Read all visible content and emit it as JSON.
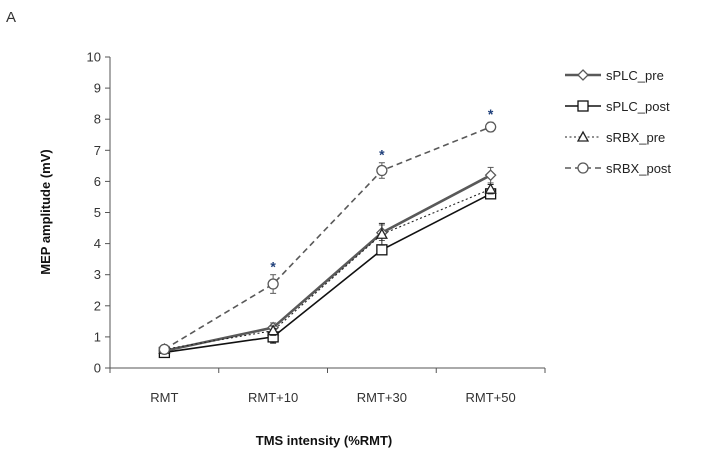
{
  "panel_label": "A",
  "chart_data": {
    "type": "line",
    "categories": [
      "RMT",
      "RMT+10",
      "RMT+30",
      "RMT+50"
    ],
    "xlabel": "TMS intensity (%RMT)",
    "ylabel": "MEP amplitude (mV)",
    "ylim": [
      0,
      10
    ],
    "yticks": [
      "0",
      "1",
      "2",
      "3",
      "4",
      "5",
      "6",
      "7",
      "8",
      "9",
      "10"
    ],
    "grid": false,
    "legend_position": "right",
    "series": [
      {
        "name": "sPLC_pre",
        "values": [
          0.55,
          1.3,
          4.35,
          6.2
        ],
        "errors": [
          0.1,
          0.15,
          0.25,
          0.25
        ],
        "marker": "diamond",
        "line_style": "solid",
        "line_width": "thick",
        "color": "#595959"
      },
      {
        "name": "sPLC_post",
        "values": [
          0.5,
          1.0,
          3.8,
          5.6
        ],
        "errors": [
          0.1,
          0.2,
          0.15,
          0.1
        ],
        "marker": "square",
        "line_style": "solid",
        "line_width": "normal",
        "color": "#111111"
      },
      {
        "name": "sRBX_pre",
        "values": [
          0.6,
          1.2,
          4.3,
          5.75
        ],
        "errors": [
          0.1,
          0.15,
          0.35,
          0.15
        ],
        "marker": "triangle",
        "line_style": "dotted",
        "line_width": "thin",
        "color": "#222222"
      },
      {
        "name": "sRBX_post",
        "values": [
          0.6,
          2.7,
          6.35,
          7.75
        ],
        "errors": [
          0.1,
          0.3,
          0.25,
          0.15
        ],
        "marker": "circle",
        "line_style": "dashed",
        "line_width": "normal",
        "color": "#595959"
      }
    ],
    "annotations": [
      {
        "text": "*",
        "category": "RMT+10",
        "y": 3.4
      },
      {
        "text": "*",
        "category": "RMT+30",
        "y": 7.0
      },
      {
        "text": "*",
        "category": "RMT+50",
        "y": 8.3
      }
    ]
  }
}
